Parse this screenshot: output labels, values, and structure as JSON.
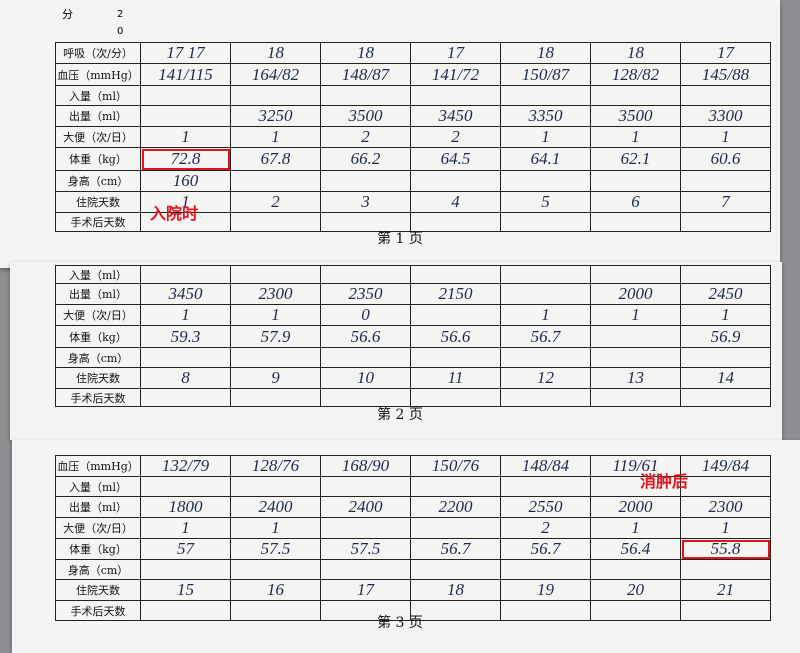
{
  "sections": [
    {
      "scale": {
        "label": "分",
        "marks": [
          "2",
          "0"
        ]
      },
      "rows": [
        {
          "label": "呼吸（次/分）",
          "cells": [
            "17 17",
            "18",
            "18",
            "17",
            "18",
            "18",
            "17"
          ]
        },
        {
          "label": "血压（mmHg）",
          "cells": [
            "141/115",
            "164/82",
            "148/87",
            "141/72",
            "150/87",
            "128/82",
            "145/88"
          ]
        },
        {
          "label": "入量（ml）",
          "cells": [
            null,
            null,
            null,
            null,
            null,
            null,
            null
          ]
        },
        {
          "label": "出量（ml）",
          "cells": [
            null,
            "3250",
            "3500",
            "3450",
            "3350",
            "3500",
            "3300"
          ]
        },
        {
          "label": "大便（次/日）",
          "cells": [
            "1",
            "1",
            "2",
            "2",
            "1",
            "1",
            "1"
          ]
        },
        {
          "label": "体重（kg）",
          "cells": [
            "72.8",
            "67.8",
            "66.2",
            "64.5",
            "64.1",
            "62.1",
            "60.6"
          ]
        },
        {
          "label": "身高（cm）",
          "cells": [
            "160",
            null,
            null,
            null,
            null,
            null,
            null
          ]
        },
        {
          "label": "住院天数",
          "cells": [
            "1",
            "2",
            "3",
            "4",
            "5",
            "6",
            "7"
          ]
        },
        {
          "label": "手术后天数",
          "cells": [
            null,
            null,
            null,
            null,
            null,
            null,
            null
          ]
        }
      ],
      "annotation": "入院时",
      "footer": "第 1 页"
    },
    {
      "rows": [
        {
          "label": "入量（ml）",
          "cells": [
            null,
            null,
            null,
            null,
            null,
            null,
            null
          ]
        },
        {
          "label": "出量（ml）",
          "cells": [
            "3450",
            "2300",
            "2350",
            "2150",
            null,
            "2000",
            "2450"
          ]
        },
        {
          "label": "大便（次/日）",
          "cells": [
            "1",
            "1",
            "0",
            null,
            "1",
            "1",
            "1"
          ]
        },
        {
          "label": "体重（kg）",
          "cells": [
            "59.3",
            "57.9",
            "56.6",
            "56.6",
            "56.7",
            null,
            "56.9"
          ]
        },
        {
          "label": "身高（cm）",
          "cells": [
            null,
            null,
            null,
            null,
            null,
            null,
            null
          ]
        },
        {
          "label": "住院天数",
          "cells": [
            "8",
            "9",
            "10",
            "11",
            "12",
            "13",
            "14"
          ]
        },
        {
          "label": "手术后天数",
          "cells": [
            null,
            null,
            null,
            null,
            null,
            null,
            null
          ]
        }
      ],
      "footer": "第 2 页"
    },
    {
      "rows": [
        {
          "label": "血压（mmHg）",
          "cells": [
            "132/79",
            "128/76",
            "168/90",
            "150/76",
            "148/84",
            "119/61",
            "149/84"
          ]
        },
        {
          "label": "入量（ml）",
          "cells": [
            null,
            null,
            null,
            null,
            null,
            null,
            null
          ]
        },
        {
          "label": "出量（ml）",
          "cells": [
            "1800",
            "2400",
            "2400",
            "2200",
            "2550",
            "2000",
            "2300"
          ]
        },
        {
          "label": "大便（次/日）",
          "cells": [
            "1",
            "1",
            null,
            null,
            "2",
            "1",
            "1"
          ]
        },
        {
          "label": "体重（kg）",
          "cells": [
            "57",
            "57.5",
            "57.5",
            "56.7",
            "56.7",
            "56.4",
            "55.8"
          ]
        },
        {
          "label": "身高（cm）",
          "cells": [
            null,
            null,
            null,
            null,
            null,
            null,
            null
          ]
        },
        {
          "label": "住院天数",
          "cells": [
            "15",
            "16",
            "17",
            "18",
            "19",
            "20",
            "21"
          ]
        },
        {
          "label": "手术后天数",
          "cells": [
            null,
            null,
            null,
            null,
            null,
            null,
            null
          ]
        }
      ],
      "annotation": "消肿后",
      "footer": "第 3 页"
    }
  ]
}
